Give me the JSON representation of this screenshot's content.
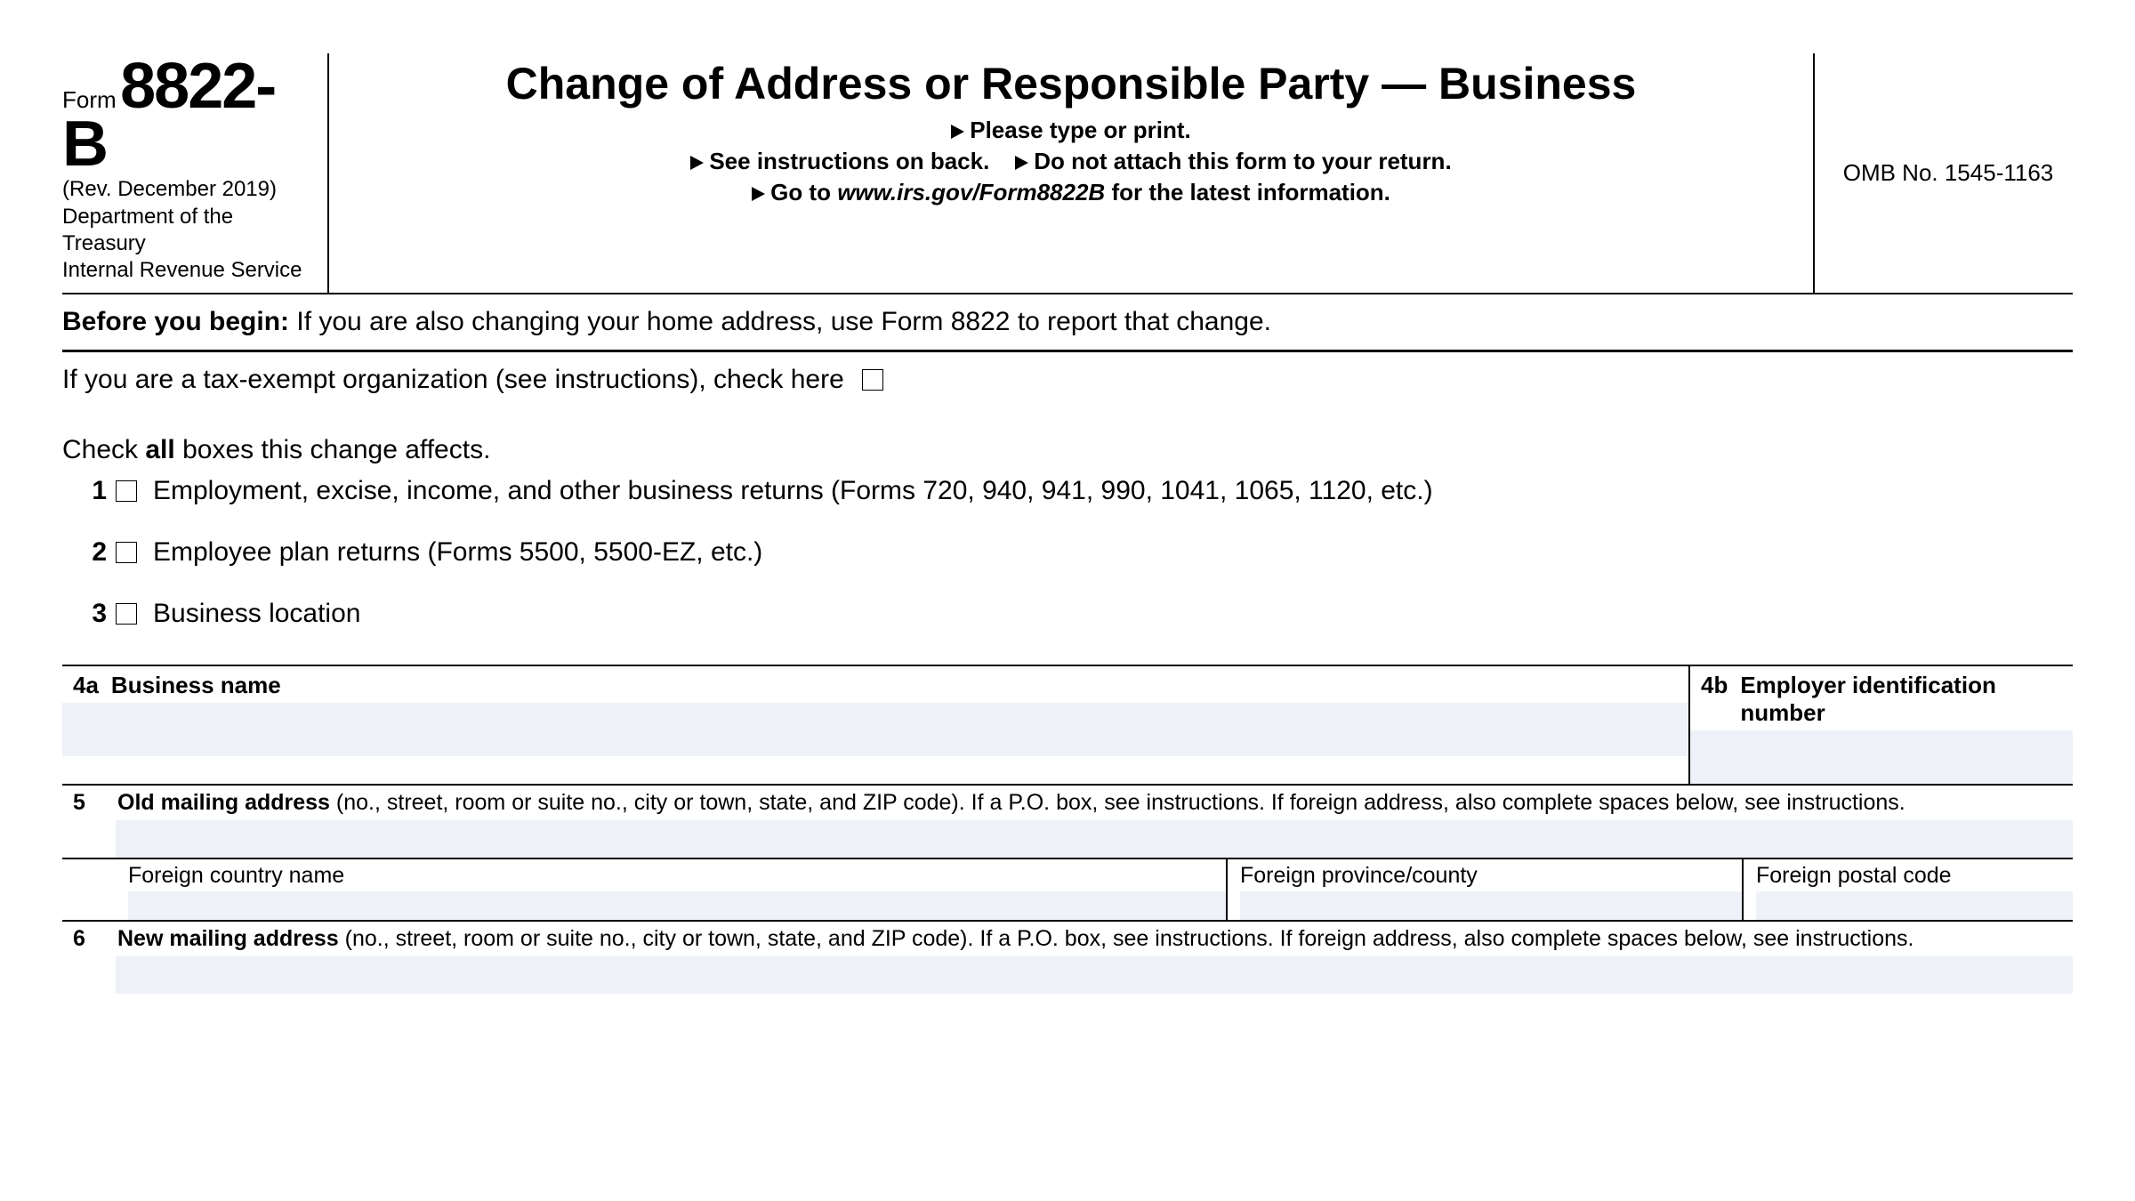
{
  "header": {
    "form_label": "Form",
    "form_number": "8822-B",
    "revision": "(Rev. December 2019)",
    "dept_line1": "Department of the Treasury",
    "dept_line2": "Internal Revenue Service",
    "title_a": "Change of Address or Responsible Party — Business",
    "instr1": "Please type or print.",
    "instr2a": "See instructions on back.",
    "instr2b": "Do not attach this form to your return.",
    "instr3a": "Go to ",
    "instr3b": "www.irs.gov/Form8822B",
    "instr3c": " for the latest information.",
    "omb": "OMB No. 1545-1163"
  },
  "before_begin": {
    "label": "Before you begin: ",
    "text": "If you are also changing your home address, use Form 8822 to report that change."
  },
  "tax_exempt": "If you are a tax-exempt organization (see instructions), check here",
  "check_all": {
    "prefix": "Check ",
    "all": "all",
    "suffix": " boxes this change affects."
  },
  "rows": {
    "r1": {
      "num": "1",
      "text": "Employment, excise, income, and other business returns (Forms 720, 940, 941, 990, 1041, 1065, 1120, etc.)"
    },
    "r2": {
      "num": "2",
      "text": "Employee plan returns (Forms 5500, 5500-EZ, etc.)"
    },
    "r3": {
      "num": "3",
      "text": "Business location"
    }
  },
  "sec4": {
    "a_num": "4a",
    "a_label": "Business name",
    "b_num": "4b",
    "b_label": "Employer identification number"
  },
  "sec5": {
    "num": "5",
    "bold": "Old mailing address ",
    "text": "(no., street, room or suite no., city or town, state, and ZIP code). If a P.O. box, see instructions. If foreign address, also complete spaces below, see instructions.",
    "fc1": "Foreign country name",
    "fc2": "Foreign province/county",
    "fc3": "Foreign postal code"
  },
  "sec6": {
    "num": "6",
    "bold": "New mailing address ",
    "text": "(no., street, room or suite no., city or town, state, and ZIP code). If a P.O. box, see instructions. If foreign address, also complete spaces below, see instructions."
  },
  "colors": {
    "input_bg": "#eff1f8",
    "text": "#000000",
    "background": "#ffffff"
  }
}
